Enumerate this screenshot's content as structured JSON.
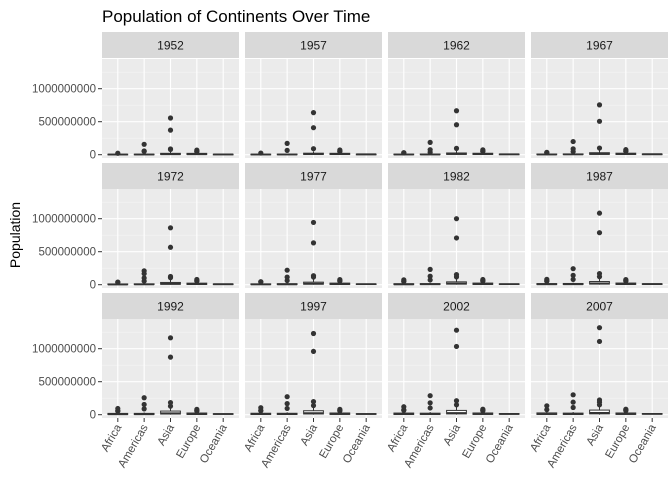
{
  "chart_data": {
    "type": "boxplot-facet",
    "title": "Population of Continents Over Time",
    "xlabel": "",
    "ylabel": "Population",
    "ylim": [
      -50000000,
      1450000000
    ],
    "yticks": [
      0,
      500000000,
      1000000000
    ],
    "ytick_labels": [
      "0",
      "500000000",
      "1000000000"
    ],
    "categories": [
      "Africa",
      "Americas",
      "Asia",
      "Europe",
      "Oceania"
    ],
    "facet_cols": 4,
    "grid": true,
    "colors": {
      "panel_bg": "#ebebeb",
      "grid_major": "#ffffff",
      "grid_minor": "#f5f5f5",
      "strip_bg": "#d9d9d9",
      "box_line": "#333333",
      "text": "#1a1a1a",
      "tick_text": "#4d4d4d"
    },
    "panels": [
      {
        "year": "1952",
        "boxes": [
          {
            "q1": 930000,
            "median": 2670000,
            "q3": 7000000,
            "wlo": 60000,
            "whi": 14000000,
            "outliers": [
              22200000
            ]
          },
          {
            "q1": 1450000,
            "median": 3150000,
            "q3": 7900000,
            "wlo": 660000,
            "whi": 13000000,
            "outliers": [
              50900000,
              56600000,
              157600000
            ]
          },
          {
            "q1": 3840000,
            "median": 7980000,
            "q3": 20770000,
            "wlo": 120000,
            "whi": 46000000,
            "outliers": [
              81000000,
              86000000,
              372000000,
              556300000
            ]
          },
          {
            "q1": 3550000,
            "median": 7970000,
            "q3": 20300000,
            "wlo": 150000,
            "whi": 42000000,
            "outliers": [
              47000000,
              49000000,
              69100000
            ]
          },
          {
            "q1": 3430000,
            "median": 5340000,
            "q3": 7240000,
            "wlo": 1990000,
            "whi": 8690000,
            "outliers": []
          }
        ]
      },
      {
        "year": "1957",
        "boxes": [
          {
            "q1": 1060000,
            "median": 2990000,
            "q3": 7800000,
            "wlo": 60000,
            "whi": 15000000,
            "outliers": [
              25000000
            ]
          },
          {
            "q1": 1700000,
            "median": 3500000,
            "q3": 9000000,
            "wlo": 760000,
            "whi": 15000000,
            "outliers": [
              65500000,
              171900000
            ]
          },
          {
            "q1": 4420000,
            "median": 9100000,
            "q3": 22800000,
            "wlo": 140000,
            "whi": 50000000,
            "outliers": [
              91000000,
              409000000,
              637400000
            ]
          },
          {
            "q1": 3660000,
            "median": 8230000,
            "q3": 21000000,
            "wlo": 160000,
            "whi": 45000000,
            "outliers": [
              49000000,
              51000000,
              71000000
            ]
          },
          {
            "q1": 3790000,
            "median": 5970000,
            "q3": 8140000,
            "wlo": 2140000,
            "whi": 9710000,
            "outliers": []
          }
        ]
      },
      {
        "year": "1962",
        "boxes": [
          {
            "q1": 1200000,
            "median": 3300000,
            "q3": 8900000,
            "wlo": 70000,
            "whi": 18000000,
            "outliers": [
              28000000,
              30000000
            ]
          },
          {
            "q1": 1900000,
            "median": 4000000,
            "q3": 10500000,
            "wlo": 850000,
            "whi": 18000000,
            "outliers": [
              37000000,
              76000000,
              186500000
            ]
          },
          {
            "q1": 5000000,
            "median": 10400000,
            "q3": 26000000,
            "wlo": 170000,
            "whi": 57000000,
            "outliers": [
              95800000,
              454000000,
              665800000
            ]
          },
          {
            "q1": 3800000,
            "median": 8600000,
            "q3": 21800000,
            "wlo": 180000,
            "whi": 47000000,
            "outliers": [
              52000000,
              53000000,
              73700000
            ]
          },
          {
            "q1": 4200000,
            "median": 6700000,
            "q3": 9200000,
            "wlo": 2400000,
            "whi": 10800000,
            "outliers": []
          }
        ]
      },
      {
        "year": "1967",
        "boxes": [
          {
            "q1": 1400000,
            "median": 3800000,
            "q3": 10200000,
            "wlo": 80000,
            "whi": 21000000,
            "outliers": [
              31000000,
              35000000
            ]
          },
          {
            "q1": 2100000,
            "median": 4700000,
            "q3": 12000000,
            "wlo": 950000,
            "whi": 20000000,
            "outliers": [
              47000000,
              88000000,
              198700000
            ]
          },
          {
            "q1": 5700000,
            "median": 11900000,
            "q3": 30000000,
            "wlo": 190000,
            "whi": 65000000,
            "outliers": [
              100800000,
              506000000,
              754600000
            ]
          },
          {
            "q1": 3900000,
            "median": 8900000,
            "q3": 22800000,
            "wlo": 190000,
            "whi": 50000000,
            "outliers": [
              54000000,
              55000000,
              76400000
            ]
          },
          {
            "q1": 4600000,
            "median": 7400000,
            "q3": 10200000,
            "wlo": 2700000,
            "whi": 11900000,
            "outliers": []
          }
        ]
      },
      {
        "year": "1972",
        "boxes": [
          {
            "q1": 1600000,
            "median": 4300000,
            "q3": 11600000,
            "wlo": 90000,
            "whi": 24000000,
            "outliers": [
              36000000,
              40000000
            ]
          },
          {
            "q1": 2400000,
            "median": 5300000,
            "q3": 13500000,
            "wlo": 1100000,
            "whi": 23000000,
            "outliers": [
              55000000,
              102000000,
              167000000,
              209900000
            ]
          },
          {
            "q1": 6500000,
            "median": 13600000,
            "q3": 34000000,
            "wlo": 230000,
            "whi": 74000000,
            "outliers": [
              107000000,
              124000000,
              567000000,
              862000000
            ]
          },
          {
            "q1": 4000000,
            "median": 9200000,
            "q3": 23500000,
            "wlo": 210000,
            "whi": 52000000,
            "outliers": [
              56000000,
              58000000,
              78700000
            ]
          },
          {
            "q1": 5000000,
            "median": 8100000,
            "q3": 11200000,
            "wlo": 2900000,
            "whi": 13200000,
            "outliers": []
          }
        ]
      },
      {
        "year": "1977",
        "boxes": [
          {
            "q1": 1800000,
            "median": 4900000,
            "q3": 13300000,
            "wlo": 100000,
            "whi": 27000000,
            "outliers": [
              41000000,
              46000000
            ]
          },
          {
            "q1": 2700000,
            "median": 6000000,
            "q3": 15300000,
            "wlo": 1200000,
            "whi": 27000000,
            "outliers": [
              63000000,
              115000000,
              220200000
            ]
          },
          {
            "q1": 7300000,
            "median": 15200000,
            "q3": 38500000,
            "wlo": 270000,
            "whi": 82000000,
            "outliers": [
              117000000,
              136000000,
              634000000,
              943500000
            ]
          },
          {
            "q1": 4100000,
            "median": 9400000,
            "q3": 24100000,
            "wlo": 220000,
            "whi": 54000000,
            "outliers": [
              56000000,
              59000000,
              78200000
            ]
          },
          {
            "q1": 5300000,
            "median": 8700000,
            "q3": 12000000,
            "wlo": 3100000,
            "whi": 14100000,
            "outliers": []
          }
        ]
      },
      {
        "year": "1982",
        "boxes": [
          {
            "q1": 2000000,
            "median": 5600000,
            "q3": 15200000,
            "wlo": 110000,
            "whi": 31000000,
            "outliers": [
              48000000,
              53000000,
              73000000
            ]
          },
          {
            "q1": 2900000,
            "median": 6700000,
            "q3": 17000000,
            "wlo": 1300000,
            "whi": 29000000,
            "outliers": [
              72000000,
              128000000,
              232200000
            ]
          },
          {
            "q1": 8100000,
            "median": 17000000,
            "q3": 43000000,
            "wlo": 310000,
            "whi": 92000000,
            "outliers": [
              118000000,
              153000000,
              708000000,
              1000300000
            ]
          },
          {
            "q1": 4200000,
            "median": 9700000,
            "q3": 24600000,
            "wlo": 230000,
            "whi": 55000000,
            "outliers": [
              56000000,
              60000000,
              78300000
            ]
          },
          {
            "q1": 5600000,
            "median": 9200000,
            "q3": 12800000,
            "wlo": 3200000,
            "whi": 15200000,
            "outliers": []
          }
        ]
      },
      {
        "year": "1987",
        "boxes": [
          {
            "q1": 2300000,
            "median": 6400000,
            "q3": 17300000,
            "wlo": 130000,
            "whi": 35000000,
            "outliers": [
              52000000,
              58000000,
              81600000
            ]
          },
          {
            "q1": 3200000,
            "median": 7400000,
            "q3": 18600000,
            "wlo": 1400000,
            "whi": 32000000,
            "outliers": [
              80000000,
              142000000,
              242800000
            ]
          },
          {
            "q1": 9000000,
            "median": 19000000,
            "q3": 48000000,
            "wlo": 350000,
            "whi": 104000000,
            "outliers": [
              122000000,
              169000000,
              788000000,
              1084000000
            ]
          },
          {
            "q1": 4300000,
            "median": 9900000,
            "q3": 25000000,
            "wlo": 240000,
            "whi": 56000000,
            "outliers": [
              57000000,
              60000000,
              77700000
            ]
          },
          {
            "q1": 5900000,
            "median": 9800000,
            "q3": 13700000,
            "wlo": 3300000,
            "whi": 16200000,
            "outliers": []
          }
        ]
      },
      {
        "year": "1992",
        "boxes": [
          {
            "q1": 2700000,
            "median": 7300000,
            "q3": 19700000,
            "wlo": 150000,
            "whi": 40000000,
            "outliers": [
              53000000,
              61000000,
              93400000
            ]
          },
          {
            "q1": 3500000,
            "median": 8100000,
            "q3": 20000000,
            "wlo": 1500000,
            "whi": 35000000,
            "outliers": [
              88000000,
              155000000,
              256900000
            ]
          },
          {
            "q1": 10000000,
            "median": 22000000,
            "q3": 55000000,
            "wlo": 400000,
            "whi": 115000000,
            "outliers": [
              130000000,
              184000000,
              872000000,
              1164900000
            ]
          },
          {
            "q1": 4400000,
            "median": 10000000,
            "q3": 25500000,
            "wlo": 260000,
            "whi": 57000000,
            "outliers": [
              58000000,
              60000000,
              80600000
            ]
          },
          {
            "q1": 6300000,
            "median": 10500000,
            "q3": 14700000,
            "wlo": 3400000,
            "whi": 17500000,
            "outliers": []
          }
        ]
      },
      {
        "year": "1997",
        "boxes": [
          {
            "q1": 3000000,
            "median": 8200000,
            "q3": 22000000,
            "wlo": 160000,
            "whi": 45000000,
            "outliers": [
              59000000,
              65000000,
              106200000
            ]
          },
          {
            "q1": 3800000,
            "median": 8700000,
            "q3": 21400000,
            "wlo": 1600000,
            "whi": 37000000,
            "outliers": [
              95000000,
              168000000,
              272900000
            ]
          },
          {
            "q1": 11000000,
            "median": 24000000,
            "q3": 60000000,
            "wlo": 440000,
            "whi": 128000000,
            "outliers": [
              139000000,
              199000000,
              959000000,
              1230100000
            ]
          },
          {
            "q1": 4500000,
            "median": 10200000,
            "q3": 25800000,
            "wlo": 270000,
            "whi": 58000000,
            "outliers": [
              59000000,
              63000000,
              82000000
            ]
          },
          {
            "q1": 6600000,
            "median": 11000000,
            "q3": 15500000,
            "wlo": 3700000,
            "whi": 18600000,
            "outliers": []
          }
        ]
      },
      {
        "year": "2002",
        "boxes": [
          {
            "q1": 3500000,
            "median": 9500000,
            "q3": 25000000,
            "wlo": 170000,
            "whi": 50000000,
            "outliers": [
              67000000,
              73000000,
              119900000
            ]
          },
          {
            "q1": 4000000,
            "median": 9200000,
            "q3": 22800000,
            "wlo": 1700000,
            "whi": 40000000,
            "outliers": [
              102000000,
              179900000,
              287700000
            ]
          },
          {
            "q1": 12000000,
            "median": 26000000,
            "q3": 65000000,
            "wlo": 480000,
            "whi": 135000000,
            "outliers": [
              150000000,
              211000000,
              1034000000,
              1280400000
            ]
          },
          {
            "q1": 4600000,
            "median": 10300000,
            "q3": 26000000,
            "wlo": 280000,
            "whi": 59000000,
            "outliers": [
              60000000,
              67000000,
              82400000
            ]
          },
          {
            "q1": 6900000,
            "median": 11600000,
            "q3": 16300000,
            "wlo": 3900000,
            "whi": 19500000,
            "outliers": []
          }
        ]
      },
      {
        "year": "2007",
        "boxes": [
          {
            "q1": 3900000,
            "median": 10100000,
            "q3": 27000000,
            "wlo": 190000,
            "whi": 57000000,
            "outliers": [
              76500000,
              135000000
            ]
          },
          {
            "q1": 4200000,
            "median": 9300000,
            "q3": 24000000,
            "wlo": 1800000,
            "whi": 42000000,
            "outliers": [
              108700000,
              190000000,
              301100000
            ]
          },
          {
            "q1": 13000000,
            "median": 28000000,
            "q3": 70000000,
            "wlo": 510000,
            "whi": 145000000,
            "outliers": [
              150000000,
              190000000,
              223000000,
              1110000000,
              1318700000
            ]
          },
          {
            "q1": 4700000,
            "median": 10200000,
            "q3": 26000000,
            "wlo": 300000,
            "whi": 60000000,
            "outliers": [
              61000000,
              71000000,
              82400000
            ]
          },
          {
            "q1": 7300000,
            "median": 12300000,
            "q3": 17300000,
            "wlo": 4100000,
            "whi": 20400000,
            "outliers": []
          }
        ]
      }
    ]
  }
}
